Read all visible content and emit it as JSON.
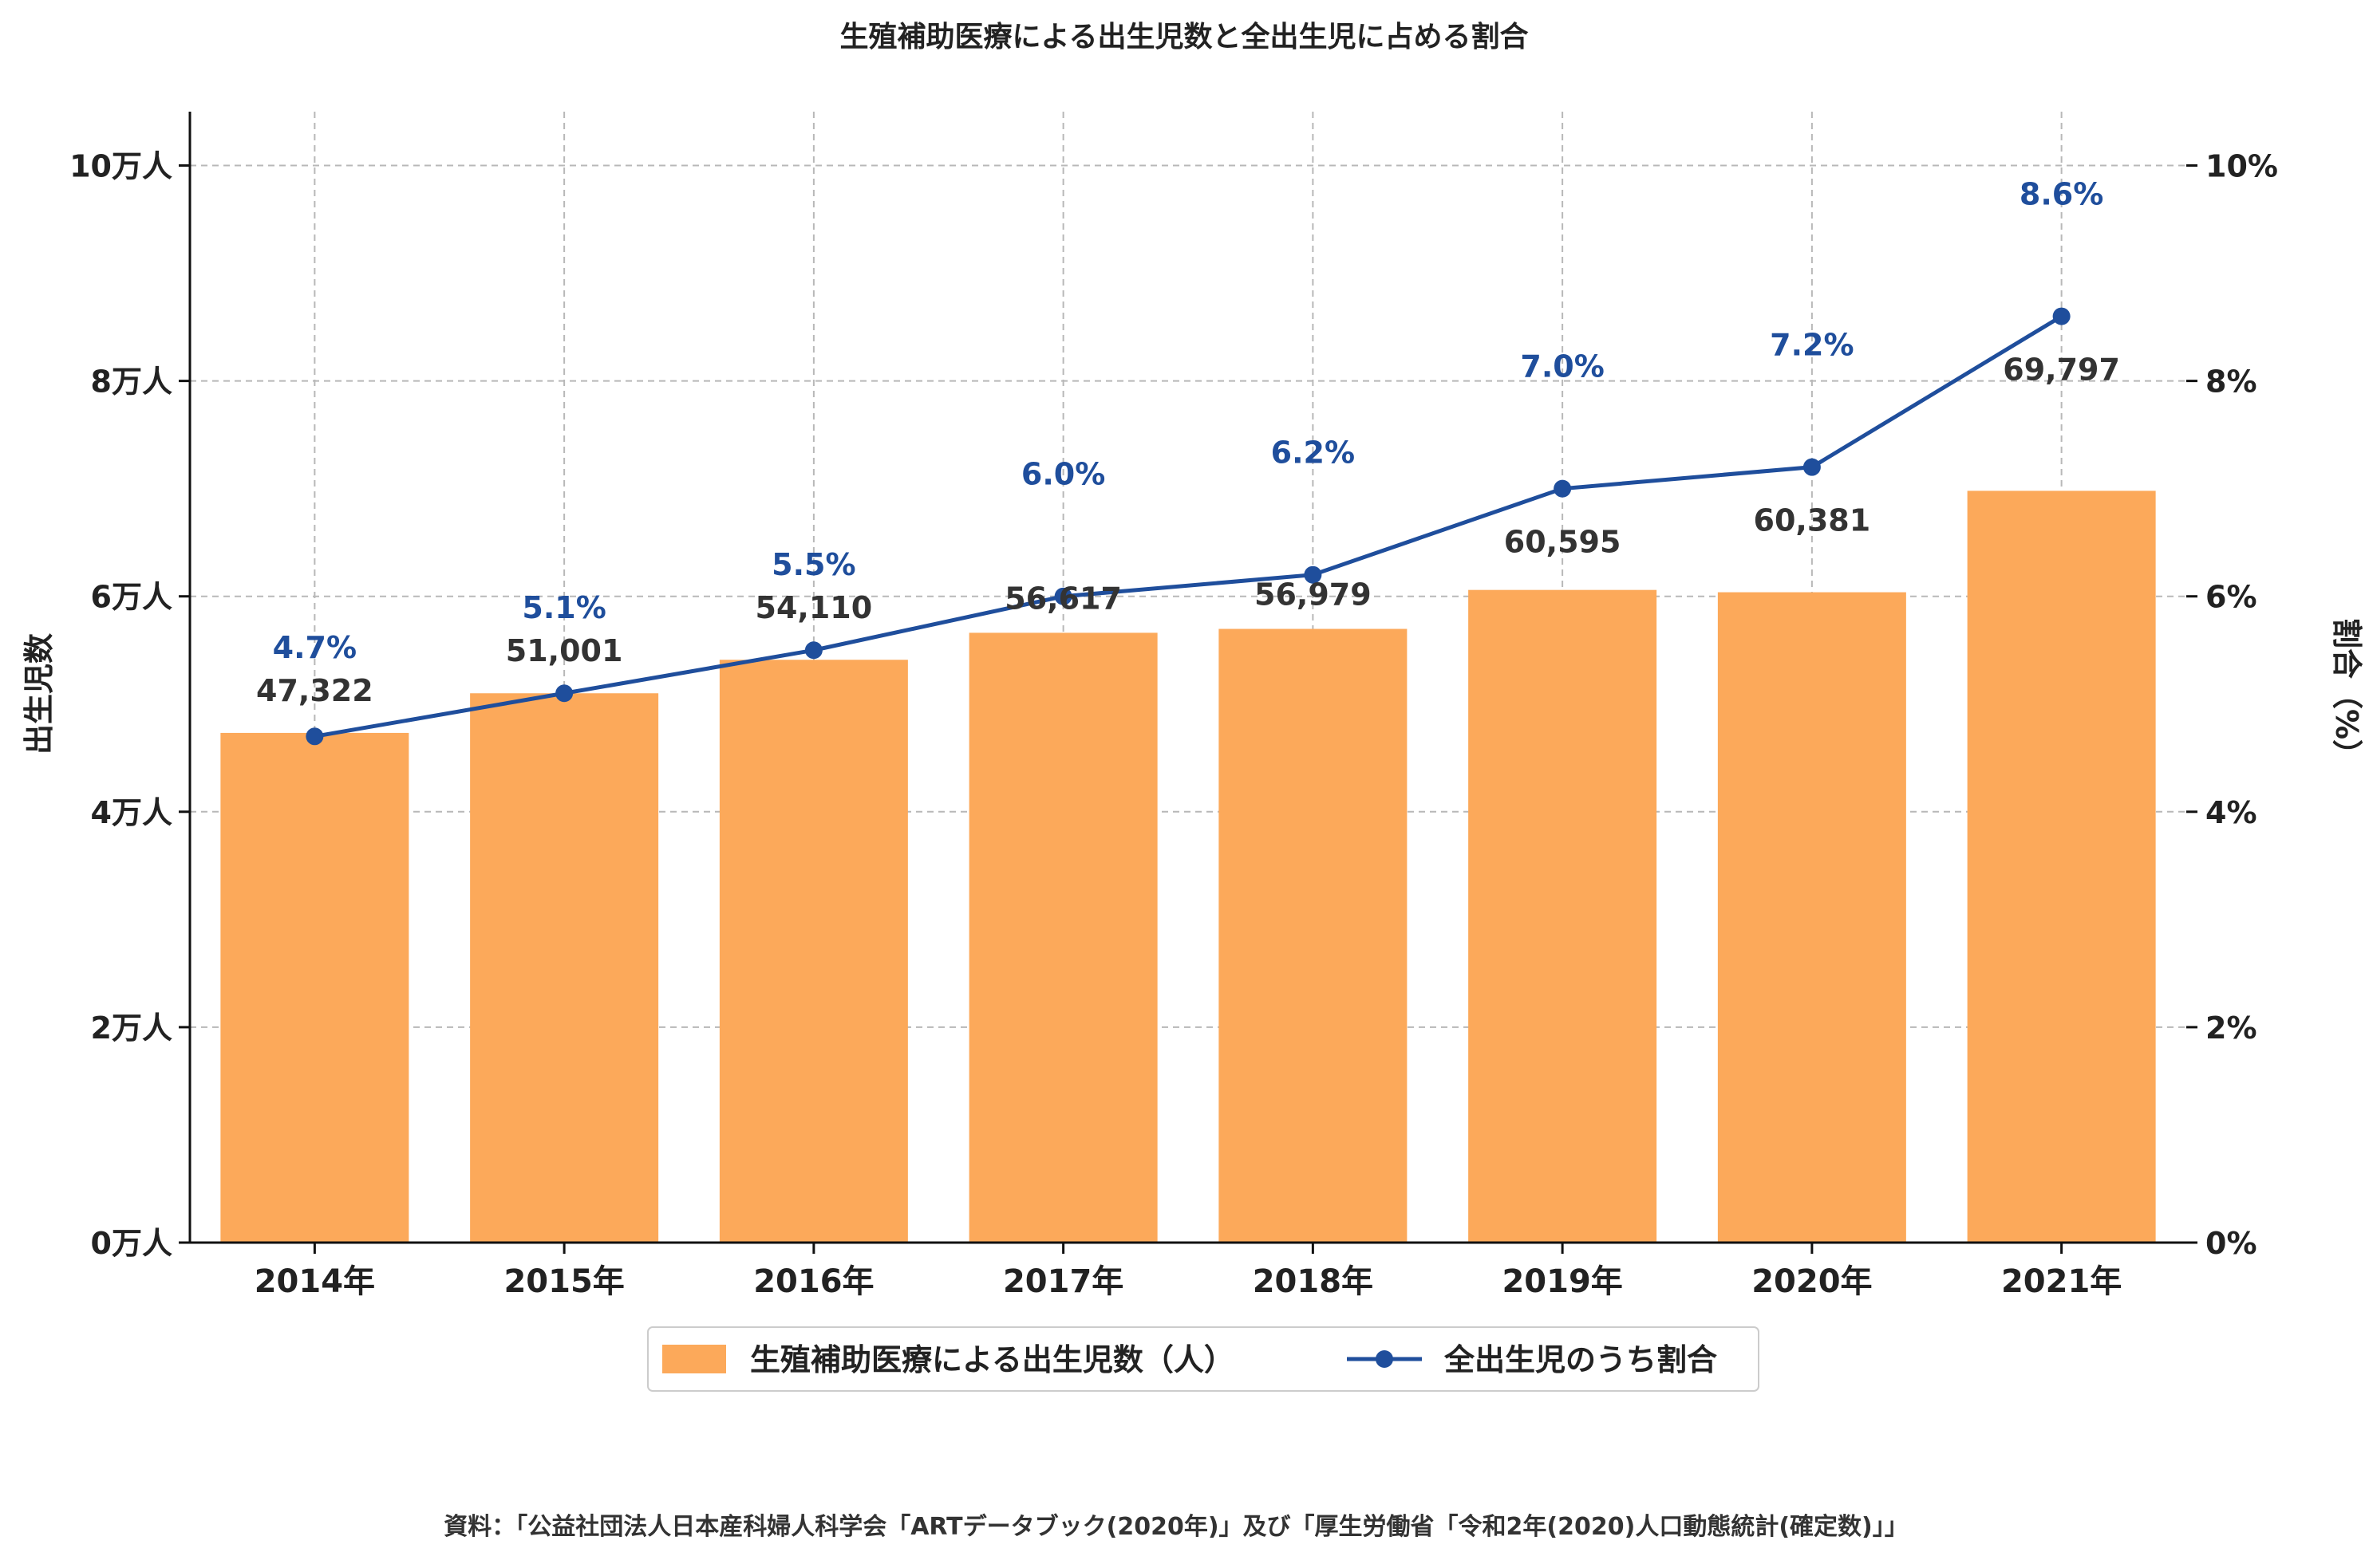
{
  "chart_data": {
    "type": "bar",
    "title": "生殖補助医療による出生児数と全出生児に占める割合",
    "categories": [
      "2014年",
      "2015年",
      "2016年",
      "2017年",
      "2018年",
      "2019年",
      "2020年",
      "2021年"
    ],
    "series": [
      {
        "name": "生殖補助医療による出生児数（人）",
        "type": "bar",
        "axis": "left",
        "values": [
          47322,
          51001,
          54110,
          56617,
          56979,
          60595,
          60381,
          69797
        ],
        "labels": [
          "47,322",
          "51,001",
          "54,110",
          "56,617",
          "56,979",
          "60,595",
          "60,381",
          "69,797"
        ]
      },
      {
        "name": "全出生児のうち割合",
        "type": "line",
        "axis": "right",
        "values": [
          4.7,
          5.1,
          5.5,
          6.0,
          6.2,
          7.0,
          7.2,
          8.6
        ],
        "labels": [
          "4.7%",
          "5.1%",
          "5.5%",
          "6.0%",
          "6.2%",
          "7.0%",
          "7.2%",
          "8.6%"
        ]
      }
    ],
    "ylabel": "出生児数",
    "y2label": "割合（%）",
    "ylim": [
      0,
      105000
    ],
    "y2lim": [
      0,
      10.5
    ],
    "yticks": [
      0,
      20000,
      40000,
      60000,
      80000,
      100000
    ],
    "yticklabels": [
      "0万人",
      "2万人",
      "4万人",
      "6万人",
      "8万人",
      "10万人"
    ],
    "y2ticks": [
      0,
      2,
      4,
      6,
      8,
      10
    ],
    "y2ticklabels": [
      "0%",
      "2%",
      "4%",
      "6%",
      "8%",
      "10%"
    ],
    "grid": true,
    "legend_position": "bottom-center",
    "colors": {
      "bar": "#fca95a",
      "line": "#1f4e9c",
      "pct_label": "#1f4e9c",
      "grid": "#b8b8b8"
    }
  },
  "source_note": "資料：「公益社団法人日本産科婦人科学会「ARTデータブック(2020年)」及び「厚生労働省「令和2年(2020)人口動態統計(確定数)」」"
}
